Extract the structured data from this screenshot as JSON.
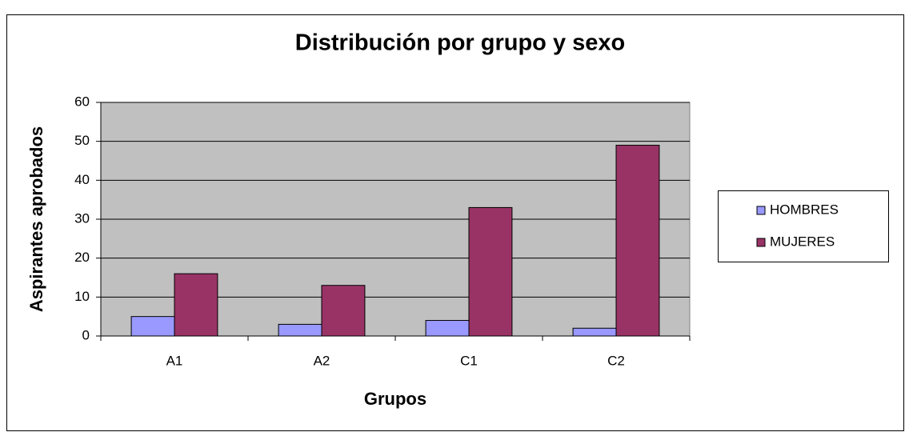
{
  "chart_data": {
    "type": "bar",
    "title": "Distribución por grupo y sexo",
    "x_label": "Grupos",
    "y_label": "Aspirantes aprobados",
    "categories": [
      "A1",
      "A2",
      "C1",
      "C2"
    ],
    "series": [
      {
        "name": "HOMBRES",
        "color": "#9999ff",
        "values": [
          5,
          3,
          4,
          2
        ]
      },
      {
        "name": "MUJERES",
        "color": "#993366",
        "values": [
          16,
          13,
          33,
          49
        ]
      }
    ],
    "ylim": [
      0,
      60
    ],
    "yticks": [
      0,
      10,
      20,
      30,
      40,
      50,
      60
    ],
    "grid": true,
    "legend": "right"
  }
}
